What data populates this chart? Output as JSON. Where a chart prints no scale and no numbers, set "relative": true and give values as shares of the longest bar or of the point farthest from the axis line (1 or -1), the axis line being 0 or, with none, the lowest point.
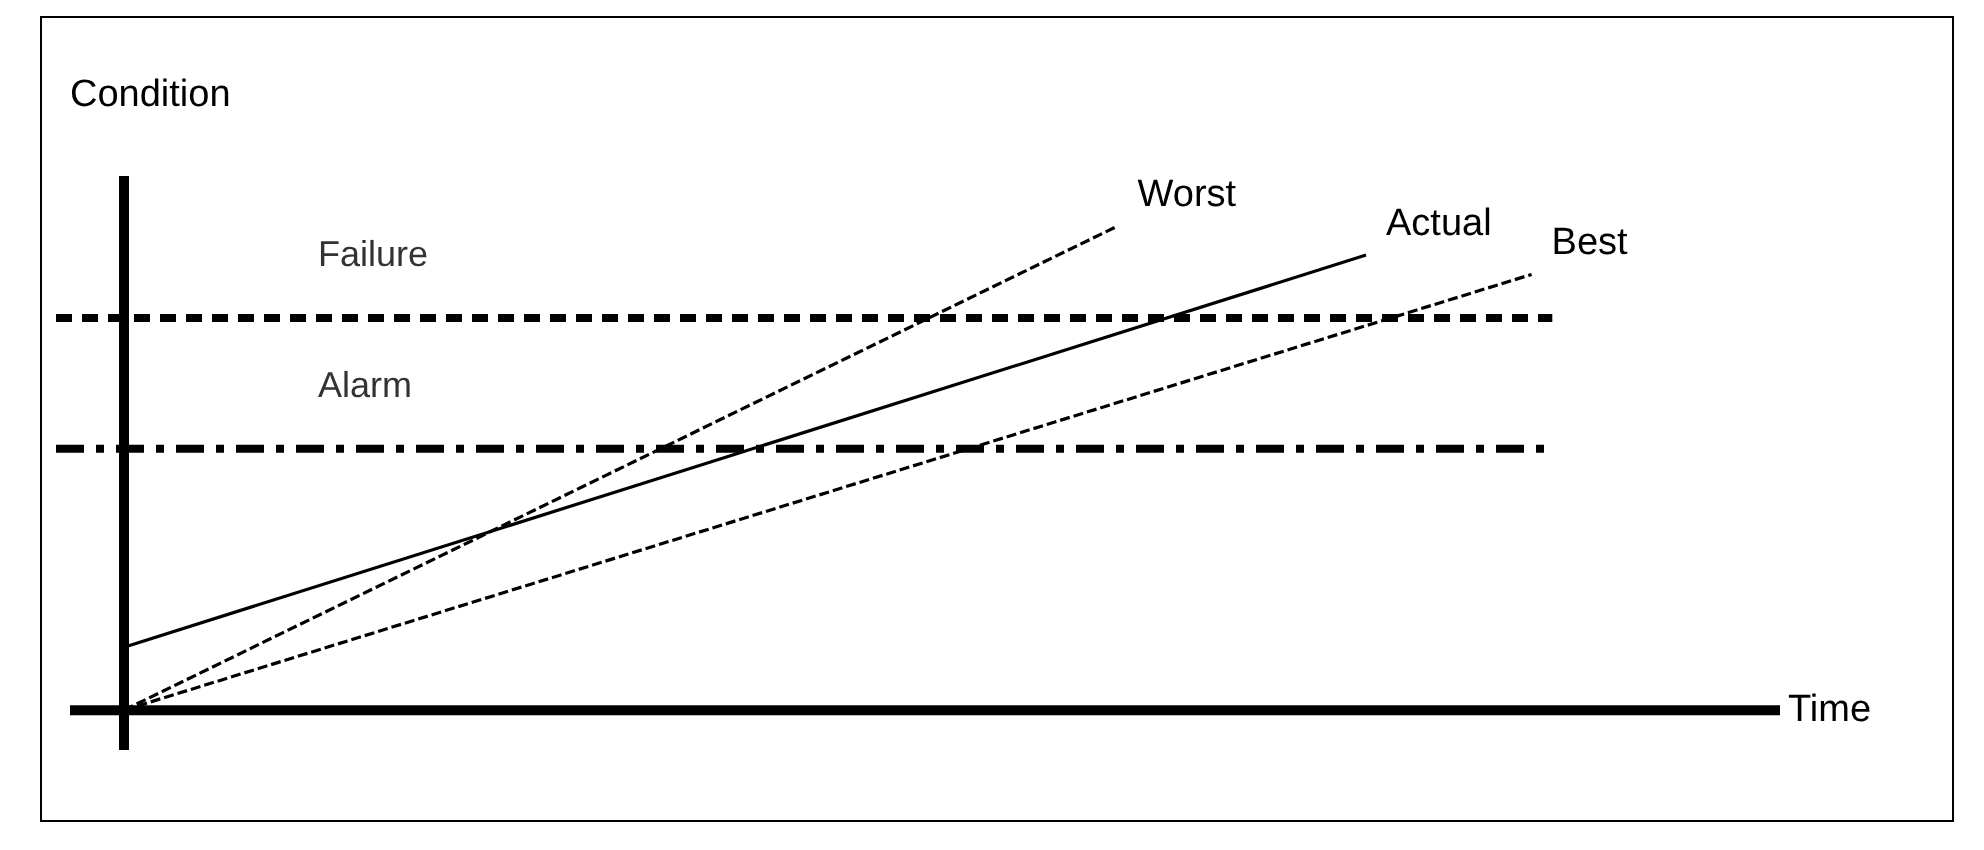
{
  "chart_data": {
    "type": "line",
    "relative": true,
    "ylabel": "Condition",
    "xlabel": "Time",
    "legend": false,
    "marker": "none",
    "categories": [
      null,
      null,
      null,
      null,
      null,
      null,
      null,
      null,
      null,
      null,
      null,
      null,
      null,
      null,
      null,
      null,
      null,
      null,
      null,
      null,
      null
    ],
    "series": [
      {
        "name": "Worst",
        "color": "#000000",
        "line_style": "dashed",
        "values": [
          0,
          null,
          null,
          null,
          null,
          null,
          null,
          null,
          null,
          null,
          null,
          null,
          1,
          null,
          null,
          null,
          null,
          null,
          null,
          null,
          null
        ]
      },
      {
        "name": "Actual",
        "color": "#000000",
        "line_style": "solid",
        "values": [
          0.13,
          null,
          null,
          null,
          null,
          null,
          null,
          null,
          null,
          null,
          null,
          null,
          null,
          null,
          null,
          0.94,
          null,
          null,
          null,
          null,
          null
        ]
      },
      {
        "name": "Best",
        "color": "#000000",
        "line_style": "dashed",
        "values": [
          0,
          null,
          null,
          null,
          null,
          null,
          null,
          null,
          null,
          null,
          null,
          null,
          null,
          null,
          null,
          null,
          null,
          0.9,
          null,
          null,
          null
        ]
      }
    ],
    "ref_lines": [
      {
        "axis": "y",
        "value": 0.81,
        "label": "Failure",
        "color": "#000000",
        "line_style": "dashed"
      },
      {
        "axis": "y",
        "value": 0.54,
        "label": "Alarm",
        "color": "#000000",
        "line_style": "dashdot"
      }
    ]
  }
}
